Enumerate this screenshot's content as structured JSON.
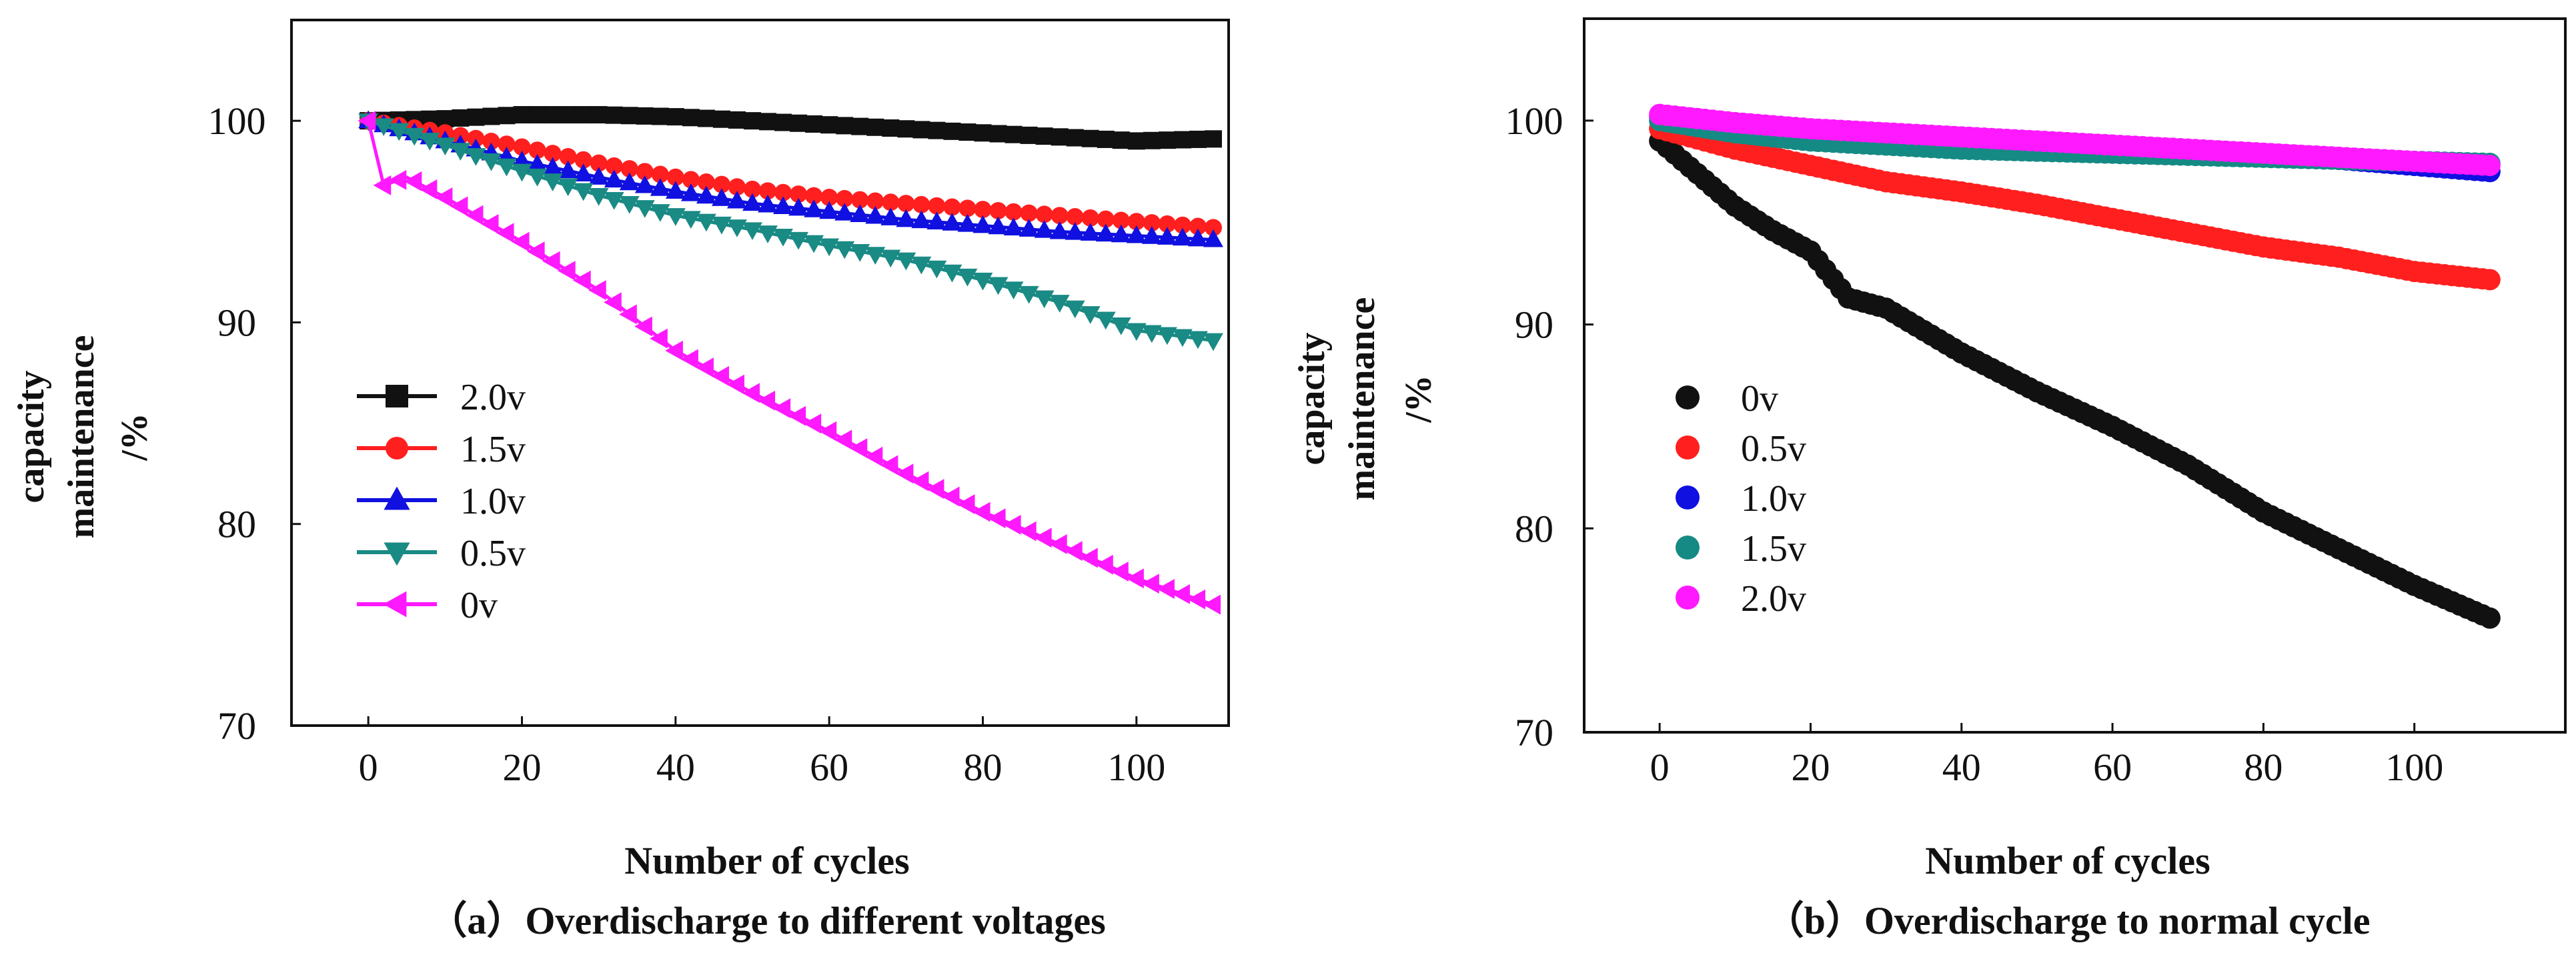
{
  "chart_data": [
    {
      "type": "line",
      "panel": "a",
      "caption": "（a）Overdischarge to different voltages",
      "xlabel": "Number of cycles",
      "ylabel_lines": [
        "capacity",
        "maintenance",
        "/%"
      ],
      "xlim": [
        -10,
        112
      ],
      "ylim": [
        70,
        105
      ],
      "xticks": [
        0,
        20,
        40,
        60,
        80,
        100
      ],
      "yticks": [
        70,
        80,
        90,
        100
      ],
      "legend_position": "center-left",
      "series": [
        {
          "name": "2.0v",
          "color": "#111111",
          "marker": "square",
          "x": [
            0,
            10,
            20,
            30,
            40,
            50,
            60,
            70,
            80,
            90,
            100,
            110
          ],
          "y": [
            100,
            100.1,
            100.3,
            100.3,
            100.2,
            100.0,
            99.8,
            99.6,
            99.4,
            99.2,
            99.0,
            99.1
          ]
        },
        {
          "name": "1.5v",
          "color": "#ff1f1f",
          "marker": "circle",
          "x": [
            0,
            10,
            20,
            30,
            40,
            50,
            60,
            70,
            80,
            90,
            100,
            110
          ],
          "y": [
            100,
            99.4,
            98.7,
            97.9,
            97.2,
            96.6,
            96.2,
            95.9,
            95.6,
            95.3,
            95.0,
            94.7
          ]
        },
        {
          "name": "1.0v",
          "color": "#1010e0",
          "marker": "triangle-up",
          "x": [
            0,
            10,
            20,
            30,
            40,
            50,
            60,
            70,
            80,
            90,
            100,
            110
          ],
          "y": [
            100,
            99.0,
            98.0,
            97.2,
            96.5,
            95.9,
            95.5,
            95.1,
            94.8,
            94.5,
            94.3,
            94.1
          ]
        },
        {
          "name": "0.5v",
          "color": "#1a8a84",
          "marker": "triangle-down",
          "x": [
            0,
            10,
            20,
            30,
            40,
            50,
            60,
            70,
            80,
            90,
            100,
            110
          ],
          "y": [
            100,
            98.8,
            97.5,
            96.3,
            95.3,
            94.6,
            93.8,
            93.1,
            92.1,
            91.0,
            89.6,
            89.1
          ]
        },
        {
          "name": "0v",
          "color": "#ff19ff",
          "marker": "triangle-left",
          "x": [
            0,
            2,
            5,
            10,
            20,
            30,
            40,
            50,
            60,
            70,
            80,
            90,
            100,
            110
          ],
          "y": [
            100,
            96.8,
            97.2,
            96.2,
            94.0,
            91.6,
            88.6,
            86.5,
            84.6,
            82.5,
            80.6,
            79.0,
            77.3,
            76.0
          ]
        }
      ]
    },
    {
      "type": "scatter",
      "panel": "b",
      "caption": "（b）Overdischarge to normal cycle",
      "xlabel": "Number of cycles",
      "ylabel_lines": [
        "capacity",
        "maintenance",
        "/%"
      ],
      "xlim": [
        -10,
        120
      ],
      "ylim": [
        70,
        105
      ],
      "xticks": [
        0,
        20,
        40,
        60,
        80,
        100
      ],
      "yticks": [
        70,
        80,
        90,
        100
      ],
      "legend_position": "center-left",
      "series": [
        {
          "name": "0v",
          "color": "#111111",
          "marker": "circle",
          "x": [
            0,
            5,
            10,
            15,
            20,
            25,
            30,
            40,
            50,
            60,
            70,
            80,
            90,
            100,
            110
          ],
          "y": [
            99.0,
            97.4,
            95.8,
            94.6,
            93.6,
            91.3,
            90.8,
            88.6,
            86.7,
            85.0,
            83.1,
            80.8,
            79.0,
            77.2,
            75.6
          ]
        },
        {
          "name": "0.5v",
          "color": "#ff1f1f",
          "marker": "circle",
          "x": [
            0,
            10,
            20,
            30,
            40,
            50,
            60,
            70,
            80,
            90,
            100,
            110
          ],
          "y": [
            99.6,
            98.6,
            97.8,
            97.0,
            96.5,
            95.9,
            95.2,
            94.5,
            93.8,
            93.3,
            92.6,
            92.2
          ]
        },
        {
          "name": "1.0v",
          "color": "#1010e0",
          "marker": "circle",
          "x": [
            0,
            10,
            20,
            30,
            40,
            50,
            60,
            70,
            80,
            90,
            100,
            110
          ],
          "y": [
            100.2,
            99.6,
            99.2,
            99.0,
            98.8,
            98.7,
            98.6,
            98.5,
            98.3,
            98.1,
            97.8,
            97.5
          ]
        },
        {
          "name": "1.5v",
          "color": "#158a84",
          "marker": "circle",
          "x": [
            0,
            10,
            20,
            30,
            40,
            50,
            60,
            70,
            80,
            90,
            100,
            110
          ],
          "y": [
            100.0,
            99.4,
            99.0,
            98.8,
            98.6,
            98.5,
            98.4,
            98.3,
            98.2,
            98.1,
            98.0,
            97.9
          ]
        },
        {
          "name": "2.0v",
          "color": "#ff19ff",
          "marker": "circle",
          "x": [
            0,
            10,
            20,
            30,
            40,
            50,
            60,
            70,
            80,
            90,
            100,
            110
          ],
          "y": [
            100.3,
            99.9,
            99.6,
            99.4,
            99.2,
            99.0,
            98.8,
            98.6,
            98.4,
            98.2,
            98.0,
            97.8
          ]
        }
      ]
    }
  ]
}
